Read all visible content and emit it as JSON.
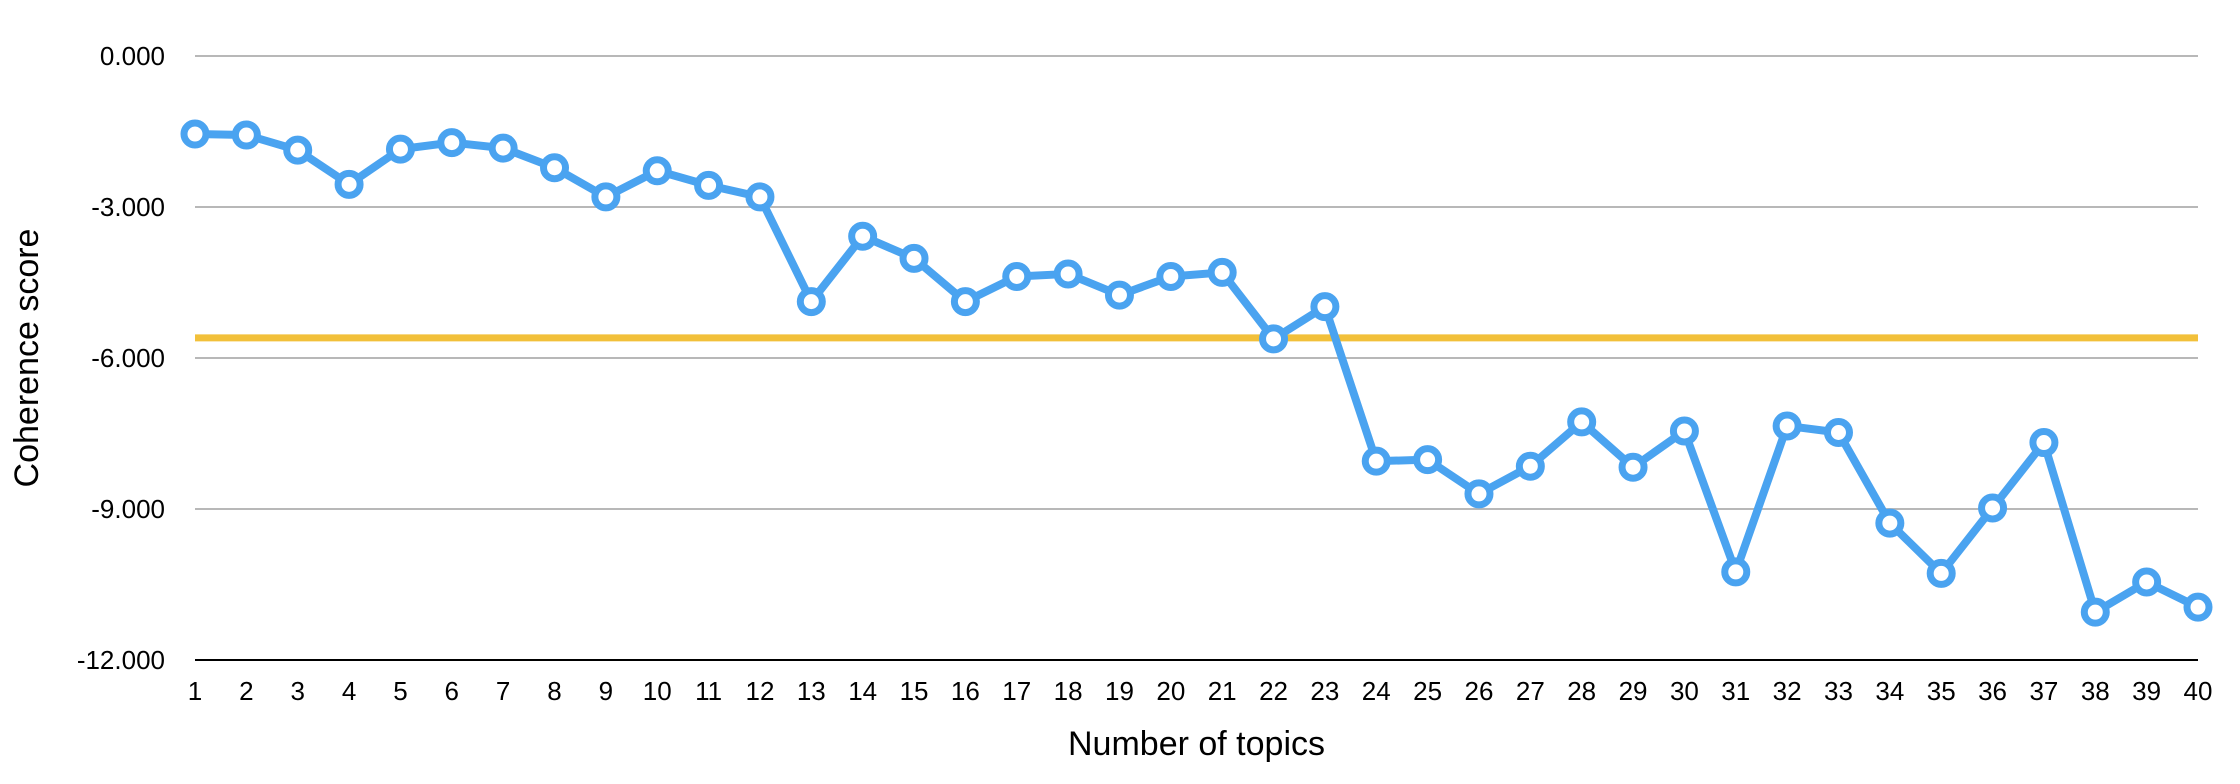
{
  "chart_data": {
    "type": "line",
    "title": "",
    "xlabel": "Number of topics",
    "ylabel": "Coherence score",
    "x": [
      1,
      2,
      3,
      4,
      5,
      6,
      7,
      8,
      9,
      10,
      11,
      12,
      13,
      14,
      15,
      16,
      17,
      18,
      19,
      20,
      21,
      22,
      23,
      24,
      25,
      26,
      27,
      28,
      29,
      30,
      31,
      32,
      33,
      34,
      35,
      36,
      37,
      38,
      39,
      40
    ],
    "series": [
      {
        "name": "",
        "values": [
          -1.55,
          -1.57,
          -1.87,
          -2.55,
          -1.85,
          -1.72,
          -1.83,
          -2.22,
          -2.8,
          -2.28,
          -2.57,
          -2.8,
          -4.88,
          -3.58,
          -4.02,
          -4.88,
          -4.38,
          -4.33,
          -4.75,
          -4.38,
          -4.3,
          -5.62,
          -4.98,
          -8.05,
          -8.02,
          -8.7,
          -8.15,
          -7.27,
          -8.17,
          -7.45,
          -10.25,
          -7.35,
          -7.48,
          -9.28,
          -10.28,
          -8.98,
          -7.68,
          -11.05,
          -10.45,
          -10.95
        ],
        "color": "#4aa3f0"
      }
    ],
    "reference_line": {
      "value": -5.6,
      "color": "#f2c03a"
    },
    "ylim": [
      -12,
      0
    ],
    "yticks": [
      0,
      -3,
      -6,
      -9,
      -12
    ],
    "ytick_labels": [
      "0.000",
      "-3.000",
      "-6.000",
      "-9.000",
      "-12.000"
    ],
    "xtick_labels": [
      "1",
      "2",
      "3",
      "4",
      "5",
      "6",
      "7",
      "8",
      "9",
      "10",
      "11",
      "12",
      "13",
      "14",
      "15",
      "16",
      "17",
      "18",
      "19",
      "20",
      "21",
      "22",
      "23",
      "24",
      "25",
      "26",
      "27",
      "28",
      "29",
      "30",
      "31",
      "32",
      "33",
      "34",
      "35",
      "36",
      "37",
      "38",
      "39",
      "40"
    ],
    "grid": true,
    "legend": "none"
  }
}
